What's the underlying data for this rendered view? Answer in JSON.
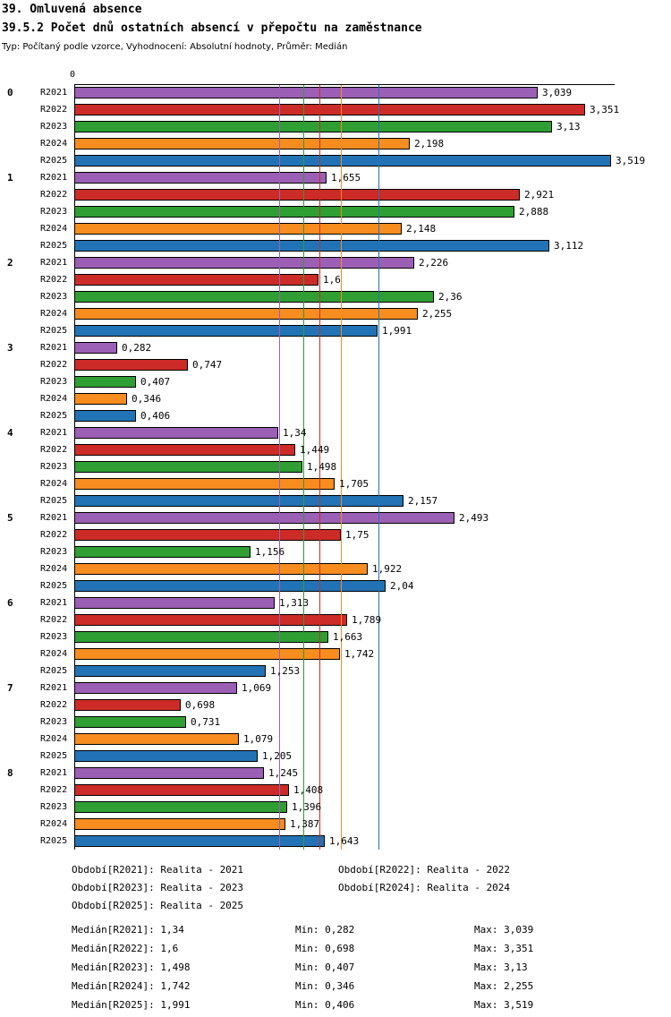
{
  "header": {
    "title": "39. Omluvená absence",
    "subtitle": "39.5.2 Počet dnů ostatních absencí v přepočtu na zaměstnance",
    "meta": "Typ: Počítaný podle vzorce, Vyhodnocení: Absolutní hodnoty, Průměr: Medián"
  },
  "axis": {
    "zero_label": "0"
  },
  "chart_data": {
    "type": "bar",
    "orientation": "horizontal",
    "title": "39.5.2 Počet dnů ostatních absencí v přepočtu na zaměstnance",
    "xlabel": "",
    "ylabel": "",
    "xlim": [
      0,
      3.55
    ],
    "grid": false,
    "legend_position": "bottom",
    "categories": [
      "0",
      "1",
      "2",
      "3",
      "4",
      "5",
      "6",
      "7",
      "8"
    ],
    "series": [
      {
        "name": "R2021",
        "color": "#9B5FB5",
        "median": 1.34,
        "values": [
          3.039,
          1.655,
          2.226,
          0.282,
          1.34,
          2.493,
          1.313,
          1.069,
          1.245
        ],
        "labels": [
          "3,039",
          "1,655",
          "2,226",
          "0,282",
          "1,34",
          "2,493",
          "1,313",
          "1,069",
          "1,245"
        ]
      },
      {
        "name": "R2022",
        "color": "#CD2B27",
        "median": 1.6,
        "values": [
          3.351,
          2.921,
          1.6,
          0.747,
          1.449,
          1.75,
          1.789,
          0.698,
          1.408
        ],
        "labels": [
          "3,351",
          "2,921",
          "1,6",
          "0,747",
          "1,449",
          "1,75",
          "1,789",
          "0,698",
          "1,408"
        ]
      },
      {
        "name": "R2023",
        "color": "#2F9E33",
        "median": 1.498,
        "values": [
          3.13,
          2.888,
          2.36,
          0.407,
          1.498,
          1.156,
          1.663,
          0.731,
          1.396
        ],
        "labels": [
          "3,13",
          "2,888",
          "2,36",
          "0,407",
          "1,498",
          "1,156",
          "1,663",
          "0,731",
          "1,396"
        ]
      },
      {
        "name": "R2024",
        "color": "#F78C1F",
        "median": 1.742,
        "values": [
          2.198,
          2.148,
          2.255,
          0.346,
          1.705,
          1.922,
          1.742,
          1.079,
          1.387
        ],
        "labels": [
          "2,198",
          "2,148",
          "2,255",
          "0,346",
          "1,705",
          "1,922",
          "1,742",
          "1,079",
          "1,387"
        ]
      },
      {
        "name": "R2025",
        "color": "#2273B6",
        "median": 1.991,
        "values": [
          3.519,
          3.112,
          1.991,
          0.406,
          2.157,
          2.04,
          1.253,
          1.205,
          1.643
        ],
        "labels": [
          "3,519",
          "3,112",
          "1,991",
          "0,406",
          "2,157",
          "2,04",
          "1,253",
          "1,205",
          "1,643"
        ]
      }
    ]
  },
  "legend": {
    "entries": [
      {
        "text": "Období[R2021]: Realita - 2021"
      },
      {
        "text": "Období[R2022]: Realita - 2022"
      },
      {
        "text": "Období[R2023]: Realita - 2023"
      },
      {
        "text": "Období[R2024]: Realita - 2024"
      },
      {
        "text": "Období[R2025]: Realita - 2025"
      }
    ]
  },
  "stats": {
    "rows": [
      {
        "median": "Medián[R2021]: 1,34",
        "min": "Min: 0,282",
        "max": "Max: 3,039"
      },
      {
        "median": "Medián[R2022]: 1,6",
        "min": "Min: 0,698",
        "max": "Max: 3,351"
      },
      {
        "median": "Medián[R2023]: 1,498",
        "min": "Min: 0,407",
        "max": "Max: 3,13"
      },
      {
        "median": "Medián[R2024]: 1,742",
        "min": "Min: 0,346",
        "max": "Max: 2,255"
      },
      {
        "median": "Medián[R2025]: 1,991",
        "min": "Min: 0,406",
        "max": "Max: 3,519"
      }
    ]
  }
}
